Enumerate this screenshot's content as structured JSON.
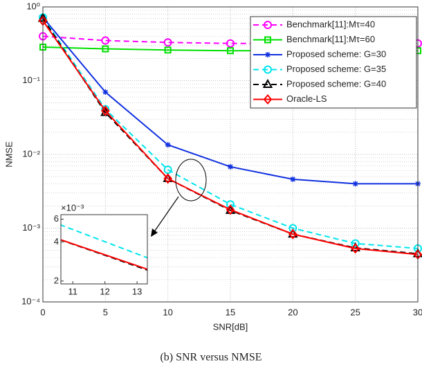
{
  "chart_data": [
    {
      "type": "line",
      "log_y": true,
      "grid": true,
      "minor_grid": true,
      "xlabel": "SNR[dB]",
      "ylabel": "NMSE",
      "caption": "(b) SNR versus NMSE",
      "legend": "upper right",
      "x": [
        0,
        5,
        10,
        15,
        20,
        25,
        30
      ],
      "xlim": [
        0,
        30
      ],
      "xticks": [
        0,
        5,
        10,
        15,
        20,
        25,
        30
      ],
      "ylim": [
        0.0001,
        1
      ],
      "yticks": [
        {
          "value": 0.0001,
          "label": "10⁻⁴"
        },
        {
          "value": 0.001,
          "label": "10⁻³"
        },
        {
          "value": 0.01,
          "label": "10⁻²"
        },
        {
          "value": 0.1,
          "label": "10⁻¹"
        },
        {
          "value": 1,
          "label": "10⁰"
        }
      ],
      "series": [
        {
          "name": "Benchmark[11]:Mτ=40",
          "color": "#ff00ff",
          "marker": "circle",
          "dash": true,
          "values": [
            0.4,
            0.35,
            0.33,
            0.32,
            0.32,
            0.32,
            0.32
          ]
        },
        {
          "name": "Benchmark[11]:Mτ=60",
          "color": "#00e000",
          "marker": "square",
          "dash": false,
          "values": [
            0.285,
            0.27,
            0.26,
            0.255,
            0.255,
            0.255,
            0.255
          ]
        },
        {
          "name": "Proposed scheme: G=30",
          "color": "#1030e0",
          "marker": "asterisk",
          "dash": false,
          "values": [
            0.72,
            0.07,
            0.0135,
            0.0068,
            0.0046,
            0.004,
            0.004
          ]
        },
        {
          "name": "Proposed scheme: G=35",
          "color": "#00e5ee",
          "marker": "circle",
          "dash": true,
          "values": [
            0.72,
            0.041,
            0.0062,
            0.0021,
            0.001,
            0.00062,
            0.00053
          ]
        },
        {
          "name": "Proposed scheme: G=40",
          "color": "#000000",
          "marker": "triangle",
          "dash": true,
          "values": [
            0.7,
            0.037,
            0.0047,
            0.00174,
            0.00083,
            0.00054,
            0.00045
          ]
        },
        {
          "name": "Oracle-LS",
          "color": "#ff0000",
          "marker": "diamond",
          "dash": false,
          "values": [
            0.65,
            0.039,
            0.0047,
            0.00178,
            0.00083,
            0.00053,
            0.00044
          ]
        }
      ]
    },
    {
      "type": "inset",
      "log_y": true,
      "y_scale_label": "×10⁻³",
      "xlim": [
        10.63,
        13.32
      ],
      "xticks": [
        11,
        12,
        13
      ],
      "ylim": [
        0.0019,
        0.0065
      ],
      "yticks": [
        {
          "value": 0.002,
          "label": "2"
        },
        {
          "value": 0.004,
          "label": "4"
        },
        {
          "value": 0.006,
          "label": "6"
        }
      ]
    }
  ]
}
